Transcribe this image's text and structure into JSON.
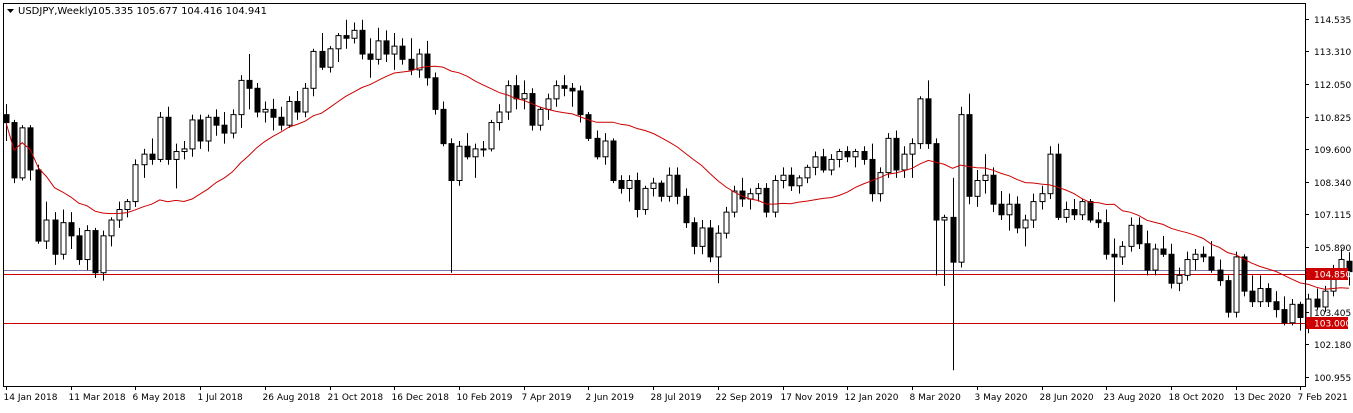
{
  "chart_data": {
    "type": "candlestick",
    "title": "USDJPY,Weekly",
    "ohlc_label": "105.335 105.677 104.416 104.941",
    "symbol": "USDJPY",
    "timeframe": "Weekly",
    "ylim": [
      100.6,
      115.1
    ],
    "y_ticks": [
      "114.535",
      "113.310",
      "112.050",
      "110.825",
      "109.600",
      "108.340",
      "107.115",
      "105.890",
      "103.405",
      "102.180",
      "100.955"
    ],
    "x_tick_labels": [
      "14 Jan 2018",
      "11 Mar 2018",
      "6 May 2018",
      "1 Jul 2018",
      "26 Aug 2018",
      "21 Oct 2018",
      "16 Dec 2018",
      "10 Feb 2019",
      "7 Apr 2019",
      "2 Jun 2019",
      "28 Jul 2019",
      "22 Sep 2019",
      "17 Nov 2019",
      "12 Jan 2020",
      "8 Mar 2020",
      "3 May 2020",
      "28 Jun 2020",
      "23 Aug 2020",
      "18 Oct 2020",
      "13 Dec 2020",
      "7 Feb 2021"
    ],
    "x_tick_index": [
      0,
      8,
      16,
      24,
      32,
      40,
      48,
      56,
      64,
      72,
      80,
      88,
      96,
      104,
      112,
      120,
      128,
      136,
      144,
      152,
      160
    ],
    "horizontal_lines": [
      {
        "value": 104.85,
        "label": "104.850",
        "color": "#cc0000"
      },
      {
        "value": 103.0,
        "label": "103.000",
        "color": "#cc0000"
      },
      {
        "value": 105.0,
        "label": "",
        "color": "#7a7aaa"
      }
    ],
    "moving_average": {
      "color": "#cc0000",
      "period": 20
    },
    "candles": [
      {
        "o": 110.9,
        "h": 111.3,
        "l": 109.9,
        "c": 110.6
      },
      {
        "o": 110.6,
        "h": 110.7,
        "l": 108.3,
        "c": 108.5
      },
      {
        "o": 108.5,
        "h": 110.5,
        "l": 108.4,
        "c": 110.4
      },
      {
        "o": 110.4,
        "h": 110.5,
        "l": 108.4,
        "c": 108.8
      },
      {
        "o": 108.8,
        "h": 109.0,
        "l": 106.0,
        "c": 106.1
      },
      {
        "o": 106.1,
        "h": 107.6,
        "l": 105.8,
        "c": 106.9
      },
      {
        "o": 106.9,
        "h": 107.2,
        "l": 105.2,
        "c": 105.6
      },
      {
        "o": 105.6,
        "h": 107.3,
        "l": 105.4,
        "c": 106.8
      },
      {
        "o": 106.8,
        "h": 107.2,
        "l": 105.8,
        "c": 106.3
      },
      {
        "o": 106.3,
        "h": 106.6,
        "l": 105.2,
        "c": 105.4
      },
      {
        "o": 105.4,
        "h": 106.7,
        "l": 105.0,
        "c": 106.5
      },
      {
        "o": 106.5,
        "h": 106.6,
        "l": 104.7,
        "c": 104.9
      },
      {
        "o": 104.9,
        "h": 106.5,
        "l": 104.6,
        "c": 106.3
      },
      {
        "o": 106.3,
        "h": 107.0,
        "l": 105.9,
        "c": 106.9
      },
      {
        "o": 106.9,
        "h": 107.6,
        "l": 106.6,
        "c": 107.3
      },
      {
        "o": 107.3,
        "h": 107.7,
        "l": 107.0,
        "c": 107.6
      },
      {
        "o": 107.6,
        "h": 109.2,
        "l": 107.4,
        "c": 109.0
      },
      {
        "o": 109.0,
        "h": 109.6,
        "l": 108.5,
        "c": 109.4
      },
      {
        "o": 109.4,
        "h": 110.0,
        "l": 109.0,
        "c": 109.2
      },
      {
        "o": 109.2,
        "h": 111.0,
        "l": 109.1,
        "c": 110.8
      },
      {
        "o": 110.8,
        "h": 111.2,
        "l": 109.0,
        "c": 109.2
      },
      {
        "o": 109.2,
        "h": 109.8,
        "l": 108.1,
        "c": 109.5
      },
      {
        "o": 109.5,
        "h": 109.9,
        "l": 109.2,
        "c": 109.6
      },
      {
        "o": 109.6,
        "h": 110.9,
        "l": 109.3,
        "c": 110.7
      },
      {
        "o": 110.7,
        "h": 110.9,
        "l": 109.6,
        "c": 109.9
      },
      {
        "o": 109.9,
        "h": 110.9,
        "l": 109.5,
        "c": 110.8
      },
      {
        "o": 110.8,
        "h": 111.1,
        "l": 110.1,
        "c": 110.5
      },
      {
        "o": 110.5,
        "h": 111.0,
        "l": 109.8,
        "c": 110.2
      },
      {
        "o": 110.2,
        "h": 111.1,
        "l": 110.0,
        "c": 110.9
      },
      {
        "o": 110.9,
        "h": 112.4,
        "l": 110.4,
        "c": 112.2
      },
      {
        "o": 112.2,
        "h": 113.2,
        "l": 111.1,
        "c": 111.9
      },
      {
        "o": 111.9,
        "h": 112.1,
        "l": 110.8,
        "c": 111.0
      },
      {
        "o": 111.0,
        "h": 111.4,
        "l": 110.6,
        "c": 111.1
      },
      {
        "o": 111.1,
        "h": 111.5,
        "l": 110.3,
        "c": 110.8
      },
      {
        "o": 110.8,
        "h": 111.2,
        "l": 110.3,
        "c": 110.5
      },
      {
        "o": 110.5,
        "h": 111.6,
        "l": 110.4,
        "c": 111.4
      },
      {
        "o": 111.4,
        "h": 111.8,
        "l": 110.7,
        "c": 111.0
      },
      {
        "o": 111.0,
        "h": 112.1,
        "l": 110.8,
        "c": 111.9
      },
      {
        "o": 111.9,
        "h": 113.4,
        "l": 111.6,
        "c": 113.3
      },
      {
        "o": 113.3,
        "h": 114.0,
        "l": 112.6,
        "c": 112.7
      },
      {
        "o": 112.7,
        "h": 113.5,
        "l": 112.5,
        "c": 113.4
      },
      {
        "o": 113.4,
        "h": 114.0,
        "l": 112.9,
        "c": 113.9
      },
      {
        "o": 113.9,
        "h": 114.5,
        "l": 113.4,
        "c": 113.8
      },
      {
        "o": 113.8,
        "h": 114.4,
        "l": 113.6,
        "c": 114.1
      },
      {
        "o": 114.1,
        "h": 114.5,
        "l": 113.0,
        "c": 113.2
      },
      {
        "o": 113.2,
        "h": 113.8,
        "l": 112.3,
        "c": 113.0
      },
      {
        "o": 113.0,
        "h": 114.2,
        "l": 112.8,
        "c": 113.7
      },
      {
        "o": 113.7,
        "h": 114.1,
        "l": 112.9,
        "c": 113.2
      },
      {
        "o": 113.2,
        "h": 114.0,
        "l": 112.6,
        "c": 113.5
      },
      {
        "o": 113.5,
        "h": 113.8,
        "l": 112.8,
        "c": 113.0
      },
      {
        "o": 113.0,
        "h": 113.8,
        "l": 112.4,
        "c": 112.6
      },
      {
        "o": 112.6,
        "h": 113.4,
        "l": 112.3,
        "c": 113.2
      },
      {
        "o": 113.2,
        "h": 113.7,
        "l": 112.0,
        "c": 112.3
      },
      {
        "o": 112.3,
        "h": 112.5,
        "l": 110.9,
        "c": 111.1
      },
      {
        "o": 111.1,
        "h": 111.4,
        "l": 109.7,
        "c": 109.8
      },
      {
        "o": 109.8,
        "h": 110.0,
        "l": 104.9,
        "c": 108.4
      },
      {
        "o": 108.4,
        "h": 109.9,
        "l": 108.2,
        "c": 109.7
      },
      {
        "o": 109.7,
        "h": 110.2,
        "l": 109.2,
        "c": 109.3
      },
      {
        "o": 109.3,
        "h": 109.8,
        "l": 108.5,
        "c": 109.6
      },
      {
        "o": 109.6,
        "h": 109.9,
        "l": 109.3,
        "c": 109.6
      },
      {
        "o": 109.6,
        "h": 110.7,
        "l": 109.5,
        "c": 110.6
      },
      {
        "o": 110.6,
        "h": 111.3,
        "l": 110.3,
        "c": 111.0
      },
      {
        "o": 111.0,
        "h": 112.2,
        "l": 110.7,
        "c": 112.0
      },
      {
        "o": 112.0,
        "h": 112.4,
        "l": 111.1,
        "c": 111.5
      },
      {
        "o": 111.5,
        "h": 112.2,
        "l": 111.1,
        "c": 111.7
      },
      {
        "o": 111.7,
        "h": 111.9,
        "l": 110.3,
        "c": 110.5
      },
      {
        "o": 110.5,
        "h": 111.2,
        "l": 110.3,
        "c": 111.1
      },
      {
        "o": 111.1,
        "h": 111.7,
        "l": 110.7,
        "c": 111.5
      },
      {
        "o": 111.5,
        "h": 112.2,
        "l": 111.2,
        "c": 112.0
      },
      {
        "o": 112.0,
        "h": 112.4,
        "l": 111.6,
        "c": 111.9
      },
      {
        "o": 111.9,
        "h": 112.1,
        "l": 111.2,
        "c": 111.8
      },
      {
        "o": 111.8,
        "h": 112.0,
        "l": 110.6,
        "c": 110.9
      },
      {
        "o": 110.9,
        "h": 111.0,
        "l": 109.9,
        "c": 110.0
      },
      {
        "o": 110.0,
        "h": 110.3,
        "l": 109.2,
        "c": 109.3
      },
      {
        "o": 109.3,
        "h": 110.2,
        "l": 109.0,
        "c": 109.9
      },
      {
        "o": 109.9,
        "h": 110.0,
        "l": 108.3,
        "c": 108.4
      },
      {
        "o": 108.4,
        "h": 108.6,
        "l": 107.9,
        "c": 108.1
      },
      {
        "o": 108.1,
        "h": 108.6,
        "l": 107.6,
        "c": 108.4
      },
      {
        "o": 108.4,
        "h": 108.7,
        "l": 107.0,
        "c": 107.3
      },
      {
        "o": 107.3,
        "h": 108.2,
        "l": 107.1,
        "c": 108.1
      },
      {
        "o": 108.1,
        "h": 108.5,
        "l": 107.8,
        "c": 108.3
      },
      {
        "o": 108.3,
        "h": 108.4,
        "l": 107.6,
        "c": 107.8
      },
      {
        "o": 107.8,
        "h": 108.9,
        "l": 107.6,
        "c": 108.6
      },
      {
        "o": 108.6,
        "h": 108.9,
        "l": 107.5,
        "c": 107.8
      },
      {
        "o": 107.8,
        "h": 108.1,
        "l": 106.6,
        "c": 106.8
      },
      {
        "o": 106.8,
        "h": 107.0,
        "l": 105.6,
        "c": 105.9
      },
      {
        "o": 105.9,
        "h": 106.9,
        "l": 105.6,
        "c": 106.6
      },
      {
        "o": 106.6,
        "h": 106.9,
        "l": 105.3,
        "c": 105.5
      },
      {
        "o": 105.5,
        "h": 106.7,
        "l": 104.5,
        "c": 106.4
      },
      {
        "o": 106.4,
        "h": 107.4,
        "l": 106.2,
        "c": 107.2
      },
      {
        "o": 107.2,
        "h": 108.2,
        "l": 107.0,
        "c": 108.0
      },
      {
        "o": 108.0,
        "h": 108.5,
        "l": 107.4,
        "c": 107.7
      },
      {
        "o": 107.7,
        "h": 108.1,
        "l": 107.3,
        "c": 107.9
      },
      {
        "o": 107.9,
        "h": 108.3,
        "l": 107.6,
        "c": 108.1
      },
      {
        "o": 108.1,
        "h": 108.3,
        "l": 107.0,
        "c": 107.2
      },
      {
        "o": 107.2,
        "h": 108.6,
        "l": 107.0,
        "c": 108.4
      },
      {
        "o": 108.4,
        "h": 108.9,
        "l": 108.1,
        "c": 108.6
      },
      {
        "o": 108.6,
        "h": 108.9,
        "l": 108.0,
        "c": 108.2
      },
      {
        "o": 108.2,
        "h": 108.6,
        "l": 107.9,
        "c": 108.5
      },
      {
        "o": 108.5,
        "h": 109.0,
        "l": 108.3,
        "c": 108.9
      },
      {
        "o": 108.9,
        "h": 109.5,
        "l": 108.6,
        "c": 109.3
      },
      {
        "o": 109.3,
        "h": 109.6,
        "l": 108.7,
        "c": 108.8
      },
      {
        "o": 108.8,
        "h": 109.4,
        "l": 108.6,
        "c": 109.2
      },
      {
        "o": 109.2,
        "h": 109.6,
        "l": 108.9,
        "c": 109.5
      },
      {
        "o": 109.5,
        "h": 109.7,
        "l": 109.1,
        "c": 109.3
      },
      {
        "o": 109.3,
        "h": 109.6,
        "l": 108.9,
        "c": 109.5
      },
      {
        "o": 109.5,
        "h": 109.7,
        "l": 109.0,
        "c": 109.2
      },
      {
        "o": 109.2,
        "h": 109.8,
        "l": 107.6,
        "c": 107.9
      },
      {
        "o": 107.9,
        "h": 108.9,
        "l": 107.6,
        "c": 108.7
      },
      {
        "o": 108.7,
        "h": 110.2,
        "l": 108.5,
        "c": 110.0
      },
      {
        "o": 110.0,
        "h": 110.3,
        "l": 108.5,
        "c": 108.8
      },
      {
        "o": 108.8,
        "h": 109.7,
        "l": 108.5,
        "c": 109.4
      },
      {
        "o": 109.4,
        "h": 110.0,
        "l": 108.5,
        "c": 109.8
      },
      {
        "o": 109.8,
        "h": 111.6,
        "l": 109.6,
        "c": 111.5
      },
      {
        "o": 111.5,
        "h": 112.2,
        "l": 109.6,
        "c": 109.8
      },
      {
        "o": 109.8,
        "h": 110.0,
        "l": 104.8,
        "c": 106.9
      },
      {
        "o": 106.9,
        "h": 107.1,
        "l": 104.4,
        "c": 107.0
      },
      {
        "o": 107.0,
        "h": 108.5,
        "l": 101.2,
        "c": 105.3
      },
      {
        "o": 105.3,
        "h": 111.2,
        "l": 105.1,
        "c": 110.9
      },
      {
        "o": 110.9,
        "h": 111.7,
        "l": 107.5,
        "c": 107.8
      },
      {
        "o": 107.8,
        "h": 108.8,
        "l": 107.4,
        "c": 108.4
      },
      {
        "o": 108.4,
        "h": 109.4,
        "l": 107.9,
        "c": 108.6
      },
      {
        "o": 108.6,
        "h": 108.9,
        "l": 107.2,
        "c": 107.5
      },
      {
        "o": 107.5,
        "h": 108.0,
        "l": 106.9,
        "c": 107.1
      },
      {
        "o": 107.1,
        "h": 107.9,
        "l": 106.5,
        "c": 107.5
      },
      {
        "o": 107.5,
        "h": 107.8,
        "l": 106.4,
        "c": 106.6
      },
      {
        "o": 106.6,
        "h": 107.1,
        "l": 105.9,
        "c": 106.9
      },
      {
        "o": 106.9,
        "h": 107.9,
        "l": 106.6,
        "c": 107.6
      },
      {
        "o": 107.6,
        "h": 108.2,
        "l": 107.3,
        "c": 107.9
      },
      {
        "o": 107.9,
        "h": 109.7,
        "l": 107.7,
        "c": 109.4
      },
      {
        "o": 109.4,
        "h": 109.8,
        "l": 106.9,
        "c": 107.0
      },
      {
        "o": 107.0,
        "h": 107.6,
        "l": 106.8,
        "c": 107.3
      },
      {
        "o": 107.3,
        "h": 107.7,
        "l": 106.9,
        "c": 107.1
      },
      {
        "o": 107.1,
        "h": 107.7,
        "l": 106.9,
        "c": 107.6
      },
      {
        "o": 107.6,
        "h": 107.7,
        "l": 106.8,
        "c": 106.9
      },
      {
        "o": 106.9,
        "h": 107.2,
        "l": 106.6,
        "c": 106.8
      },
      {
        "o": 106.8,
        "h": 107.3,
        "l": 105.4,
        "c": 105.6
      },
      {
        "o": 105.6,
        "h": 106.2,
        "l": 103.8,
        "c": 105.5
      },
      {
        "o": 105.5,
        "h": 106.1,
        "l": 105.2,
        "c": 105.9
      },
      {
        "o": 105.9,
        "h": 107.0,
        "l": 105.7,
        "c": 106.7
      },
      {
        "o": 106.7,
        "h": 107.0,
        "l": 105.8,
        "c": 106.0
      },
      {
        "o": 106.0,
        "h": 106.5,
        "l": 104.8,
        "c": 105.0
      },
      {
        "o": 105.0,
        "h": 106.0,
        "l": 104.8,
        "c": 105.8
      },
      {
        "o": 105.8,
        "h": 106.3,
        "l": 105.5,
        "c": 105.6
      },
      {
        "o": 105.6,
        "h": 106.0,
        "l": 104.3,
        "c": 104.5
      },
      {
        "o": 104.5,
        "h": 105.1,
        "l": 104.2,
        "c": 104.8
      },
      {
        "o": 104.8,
        "h": 105.7,
        "l": 104.6,
        "c": 105.4
      },
      {
        "o": 105.4,
        "h": 105.8,
        "l": 105.0,
        "c": 105.6
      },
      {
        "o": 105.6,
        "h": 105.9,
        "l": 105.3,
        "c": 105.5
      },
      {
        "o": 105.5,
        "h": 106.1,
        "l": 104.9,
        "c": 105.0
      },
      {
        "o": 105.0,
        "h": 105.4,
        "l": 104.4,
        "c": 104.6
      },
      {
        "o": 104.6,
        "h": 104.8,
        "l": 103.2,
        "c": 103.4
      },
      {
        "o": 103.4,
        "h": 105.7,
        "l": 103.2,
        "c": 105.5
      },
      {
        "o": 105.5,
        "h": 105.6,
        "l": 104.0,
        "c": 104.2
      },
      {
        "o": 104.2,
        "h": 104.8,
        "l": 103.6,
        "c": 103.8
      },
      {
        "o": 103.8,
        "h": 104.8,
        "l": 103.6,
        "c": 104.3
      },
      {
        "o": 104.3,
        "h": 104.5,
        "l": 103.6,
        "c": 103.8
      },
      {
        "o": 103.8,
        "h": 104.2,
        "l": 103.2,
        "c": 103.5
      },
      {
        "o": 103.5,
        "h": 104.0,
        "l": 102.9,
        "c": 103.0
      },
      {
        "o": 103.0,
        "h": 103.9,
        "l": 102.9,
        "c": 103.7
      },
      {
        "o": 103.7,
        "h": 103.8,
        "l": 102.7,
        "c": 103.2
      },
      {
        "o": 103.2,
        "h": 104.1,
        "l": 102.6,
        "c": 103.9
      },
      {
        "o": 103.9,
        "h": 104.3,
        "l": 103.5,
        "c": 103.6
      },
      {
        "o": 103.6,
        "h": 104.4,
        "l": 103.4,
        "c": 104.2
      },
      {
        "o": 104.2,
        "h": 105.2,
        "l": 104.0,
        "c": 105.0
      },
      {
        "o": 105.0,
        "h": 105.8,
        "l": 104.8,
        "c": 105.4
      },
      {
        "o": 105.335,
        "h": 105.677,
        "l": 104.416,
        "c": 104.941
      }
    ]
  }
}
